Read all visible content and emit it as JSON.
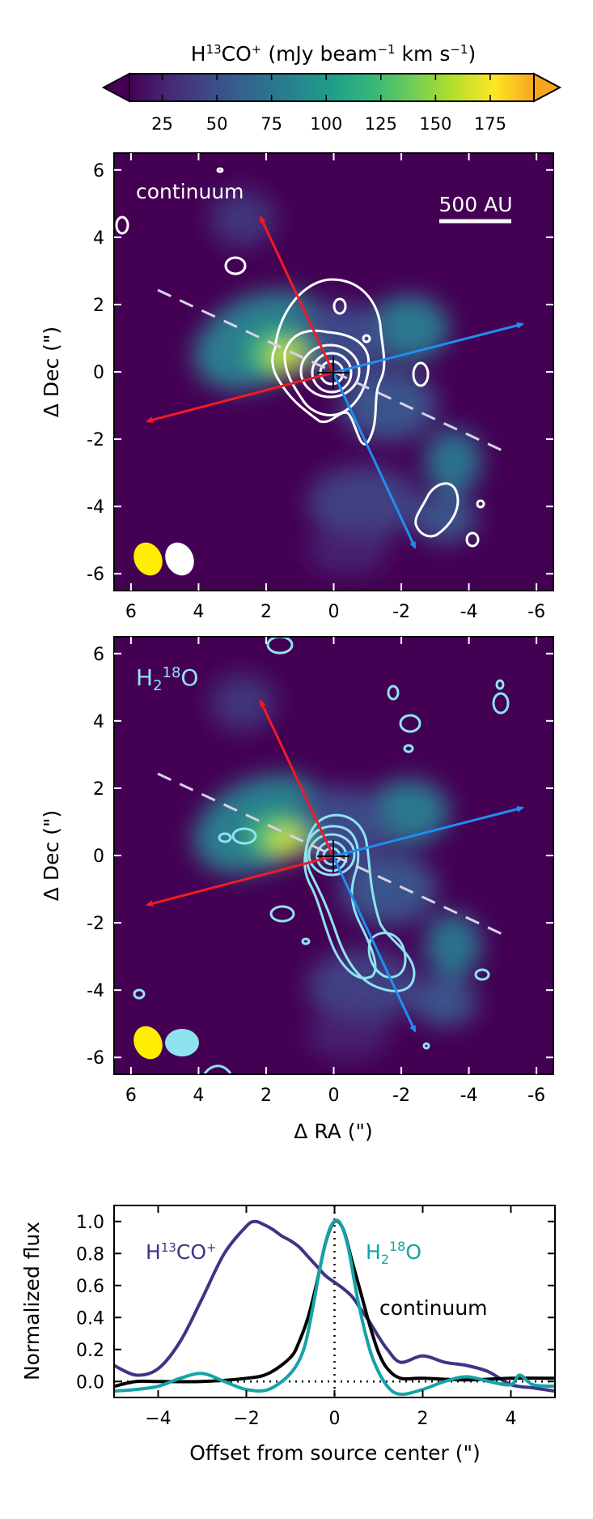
{
  "colorbar": {
    "title_prefix": "H",
    "title_sup": "13",
    "title_mid": "CO",
    "title_sup2": "+",
    "title_rest": " (mJy beam",
    "title_sup3": "−1",
    "title_rest2": " km s",
    "title_sup4": "−1",
    "title_end": ")",
    "ticks": [
      25,
      50,
      75,
      100,
      125,
      150,
      175
    ],
    "range": [
      10,
      195
    ],
    "colors": [
      "#440154",
      "#482878",
      "#3e4989",
      "#31688e",
      "#26828e",
      "#1f9e89",
      "#35b779",
      "#6ece58",
      "#b5de2b",
      "#fde725",
      "#f8a51e"
    ]
  },
  "panels": [
    {
      "id": "continuum",
      "label": "continuum",
      "label_color": "#ffffff",
      "contour_color": "#ffffff",
      "scalebar_label": "500 AU",
      "ylabel": "Δ Dec (\")"
    },
    {
      "id": "h2o",
      "label_prefix": "H",
      "label_sub": "2",
      "label_sup": "18",
      "label_end": "O",
      "label_color": "#8fe3f0",
      "contour_color": "#8fe3f0",
      "ylabel": "Δ Dec (\")"
    }
  ],
  "map_axes": {
    "xlabel": "Δ RA (\")",
    "xticks": [
      6,
      4,
      2,
      0,
      -2,
      -4,
      -6
    ],
    "xtick_labels": [
      "6",
      "4",
      "2",
      "0",
      "-2",
      "-4",
      "-6"
    ],
    "yticks": [
      6,
      4,
      2,
      0,
      -2,
      -4,
      -6
    ],
    "ytick_labels": [
      "6",
      "4",
      "2",
      "0",
      "-2",
      "-4",
      "-6"
    ],
    "xlim": [
      6.5,
      -6.5
    ],
    "ylim": [
      -6.5,
      6.5
    ]
  },
  "chart_data": {
    "type": "line",
    "xlabel": "Offset from source center (\")",
    "ylabel": "Normalized flux",
    "xlim": [
      -5,
      5
    ],
    "ylim": [
      -0.1,
      1.1
    ],
    "xticks": [
      -4,
      -2,
      0,
      2,
      4
    ],
    "yticks": [
      0.0,
      0.2,
      0.4,
      0.6,
      0.8,
      1.0
    ],
    "ytick_labels": [
      "0.0",
      "0.2",
      "0.4",
      "0.6",
      "0.8",
      "1.0"
    ],
    "series": [
      {
        "name": "H13CO+",
        "color": "#3d3584",
        "x": [
          -5,
          -4.5,
          -4,
          -3.5,
          -3,
          -2.5,
          -2,
          -1.8,
          -1.6,
          -1.4,
          -1.2,
          -1,
          -0.8,
          -0.6,
          -0.4,
          -0.2,
          0,
          0.2,
          0.4,
          0.6,
          0.8,
          1,
          1.2,
          1.5,
          2,
          2.5,
          3,
          3.5,
          4,
          4.5,
          5
        ],
        "y": [
          0.1,
          0.04,
          0.08,
          0.25,
          0.52,
          0.8,
          0.97,
          1.0,
          0.98,
          0.95,
          0.91,
          0.88,
          0.84,
          0.78,
          0.72,
          0.66,
          0.62,
          0.58,
          0.53,
          0.45,
          0.37,
          0.28,
          0.2,
          0.12,
          0.16,
          0.12,
          0.1,
          0.06,
          -0.02,
          -0.04,
          -0.06
        ]
      },
      {
        "name": "continuum",
        "color": "#000000",
        "x": [
          -5,
          -4.5,
          -4,
          -3,
          -2,
          -1.5,
          -1,
          -0.8,
          -0.6,
          -0.4,
          -0.2,
          0,
          0.2,
          0.4,
          0.6,
          0.8,
          1,
          1.2,
          1.5,
          2,
          3,
          4,
          5
        ],
        "y": [
          -0.03,
          0.0,
          0.0,
          0.0,
          0.02,
          0.05,
          0.15,
          0.25,
          0.4,
          0.62,
          0.87,
          1.0,
          0.95,
          0.75,
          0.55,
          0.35,
          0.18,
          0.08,
          0.02,
          0.02,
          0.01,
          0.02,
          0.02
        ]
      },
      {
        "name": "H218O",
        "color": "#14a3a8",
        "x": [
          -5,
          -4.5,
          -4,
          -3.5,
          -3,
          -2.5,
          -2,
          -1.5,
          -1,
          -0.7,
          -0.5,
          -0.3,
          -0.1,
          0.1,
          0.3,
          0.5,
          0.7,
          0.9,
          1.2,
          1.5,
          2,
          2.5,
          3,
          3.5,
          4,
          4.2,
          4.5,
          5
        ],
        "y": [
          -0.06,
          -0.05,
          -0.03,
          0.02,
          0.05,
          0.0,
          -0.05,
          -0.05,
          0.05,
          0.2,
          0.45,
          0.75,
          0.96,
          1.0,
          0.85,
          0.55,
          0.3,
          0.12,
          -0.03,
          -0.08,
          -0.05,
          0.0,
          0.03,
          0.0,
          -0.02,
          0.04,
          -0.02,
          -0.03
        ]
      }
    ],
    "zero_line": 0.0,
    "center_line": 0.0,
    "labels": {
      "h13co_prefix": "H",
      "h13co_sup": "13",
      "h13co_mid": "CO",
      "h13co_sup2": "+",
      "h2o_prefix": "H",
      "h2o_sub": "2",
      "h2o_sup": "18",
      "h2o_end": "O",
      "continuum": "continuum"
    }
  }
}
